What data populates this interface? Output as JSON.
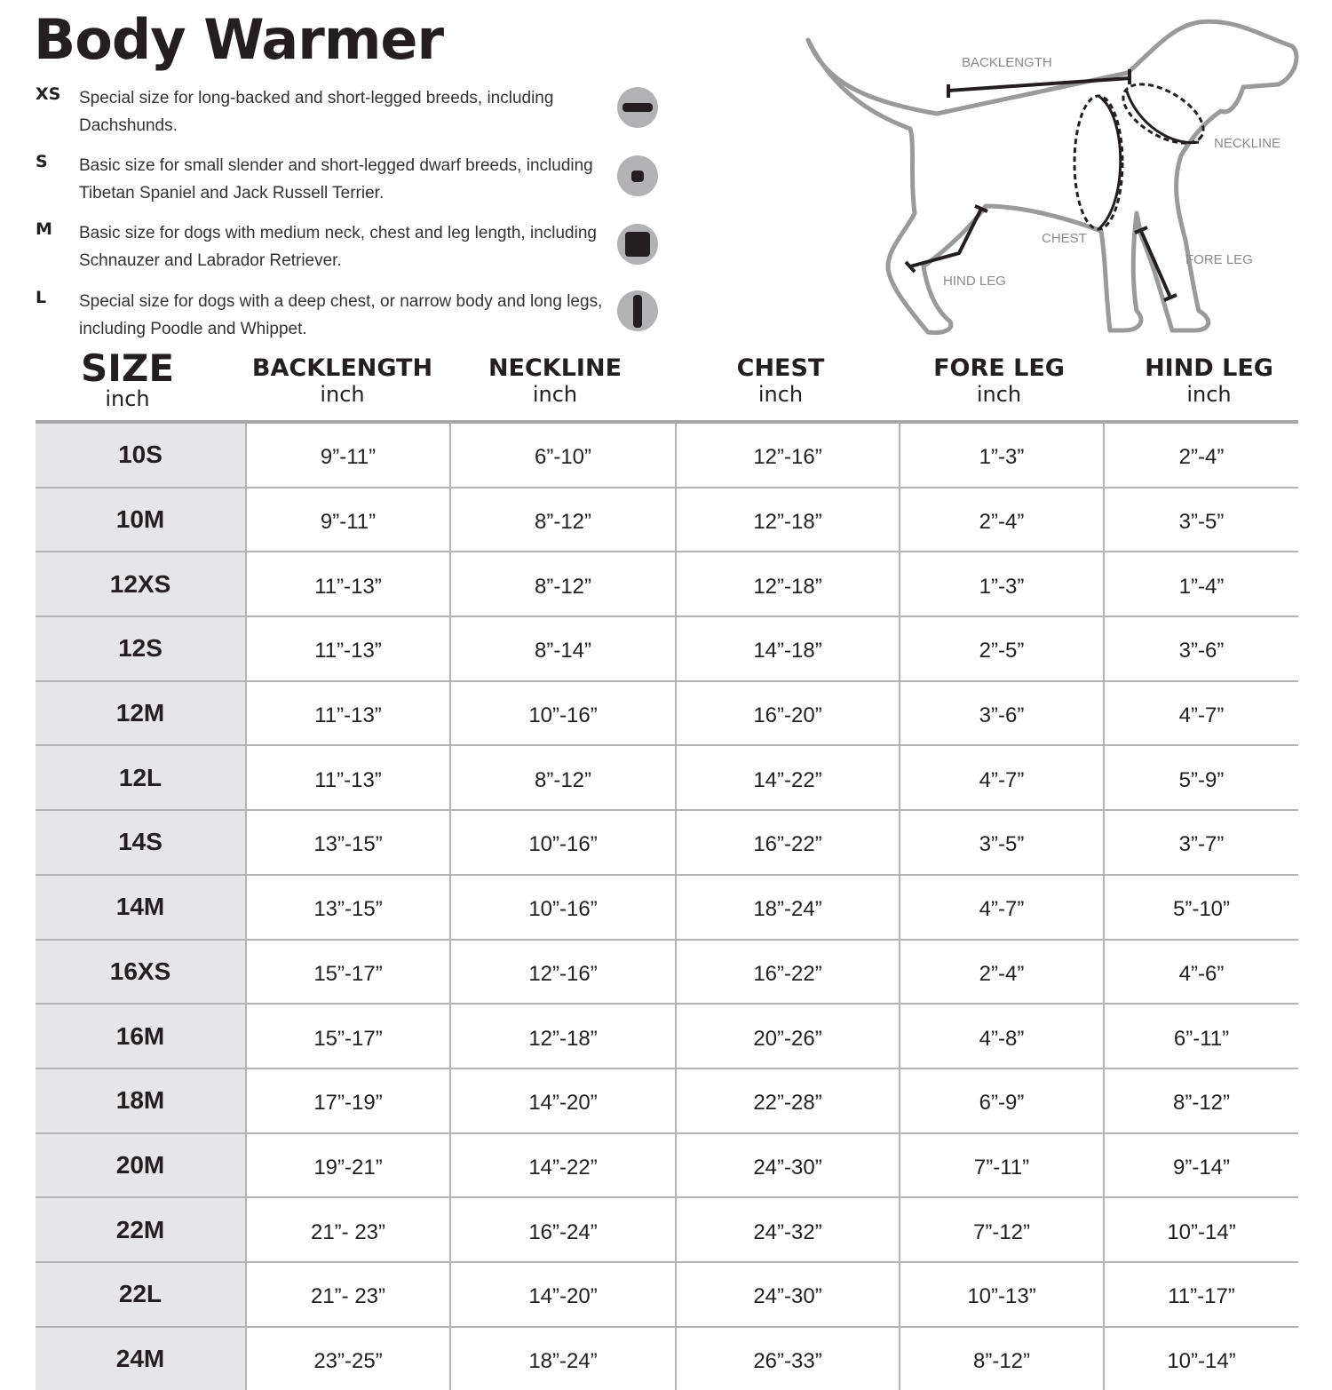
{
  "title": "Body Warmer",
  "sizes_info": [
    {
      "code": "XS",
      "text": "Special size for long-backed and short-legged breeds, including Dachshunds.",
      "icon": "horizontal-bar-icon"
    },
    {
      "code": "S",
      "text": "Basic size for small slender and short-legged dwarf breeds, including Tibetan Spaniel and Jack Russell Terrier.",
      "icon": "small-square-icon"
    },
    {
      "code": "M",
      "text": "Basic size for dogs with medium neck, chest and leg length, including Schnauzer and Labrador Retriever.",
      "icon": "large-square-icon"
    },
    {
      "code": "L",
      "text": "Special size for dogs with a deep chest, or narrow body and long legs, including Poodle and Whippet.",
      "icon": "vertical-bar-icon"
    }
  ],
  "diagram_labels": {
    "backlength": "BACKLENGTH",
    "neckline": "NECKLINE",
    "chest": "CHEST",
    "fore_leg": "FORE LEG",
    "hind_leg": "HIND LEG"
  },
  "colors": {
    "text": "#231f20",
    "size_column_bg": "#e6e6e8",
    "grid": "#b4b4b6",
    "icon_bg": "#b2b2b4"
  },
  "table": {
    "headers": [
      {
        "label": "SIZE",
        "unit": "inch"
      },
      {
        "label": "BACKLENGTH",
        "unit": "inch"
      },
      {
        "label": "NECKLINE",
        "unit": "inch"
      },
      {
        "label": "CHEST",
        "unit": "inch"
      },
      {
        "label": "FORE LEG",
        "unit": "inch"
      },
      {
        "label": "HIND LEG",
        "unit": "inch"
      }
    ],
    "rows": [
      [
        "10S",
        "9”-11”",
        "6”-10”",
        "12”-16”",
        "1”-3”",
        "2”-4”"
      ],
      [
        "10M",
        "9”-11”",
        "8”-12”",
        "12”-18”",
        "2”-4”",
        "3”-5”"
      ],
      [
        "12XS",
        "11”-13”",
        "8”-12”",
        "12”-18”",
        "1”-3”",
        "1”-4”"
      ],
      [
        "12S",
        "11”-13”",
        "8”-14”",
        "14”-18”",
        "2”-5”",
        "3”-6”"
      ],
      [
        "12M",
        "11”-13”",
        "10”-16”",
        "16”-20”",
        "3”-6”",
        "4”-7”"
      ],
      [
        "12L",
        "11”-13”",
        "8”-12”",
        "14”-22”",
        "4”-7”",
        "5”-9”"
      ],
      [
        "14S",
        "13”-15”",
        "10”-16”",
        "16”-22”",
        "3”-5”",
        "3”-7”"
      ],
      [
        "14M",
        "13”-15”",
        "10”-16”",
        "18”-24”",
        "4”-7”",
        "5”-10”"
      ],
      [
        "16XS",
        "15”-17”",
        "12”-16”",
        "16”-22”",
        "2”-4”",
        "4”-6”"
      ],
      [
        "16M",
        "15”-17”",
        "12”-18”",
        "20”-26”",
        "4”-8”",
        "6”-11”"
      ],
      [
        "18M",
        "17”-19”",
        "14”-20”",
        "22”-28”",
        "6”-9”",
        "8”-12”"
      ],
      [
        "20M",
        "19”-21”",
        "14”-22”",
        "24”-30”",
        "7”-11”",
        "9”-14”"
      ],
      [
        "22M",
        "21”- 23”",
        "16”-24”",
        "24”-32”",
        "7”-12”",
        "10”-14”"
      ],
      [
        "22L",
        "21”- 23”",
        "14”-20”",
        "24”-30”",
        "10”-13”",
        "11”-17”"
      ],
      [
        "24M",
        "23”-25”",
        "18”-24”",
        "26”-33”",
        "8”-12”",
        "10”-14”"
      ]
    ]
  }
}
